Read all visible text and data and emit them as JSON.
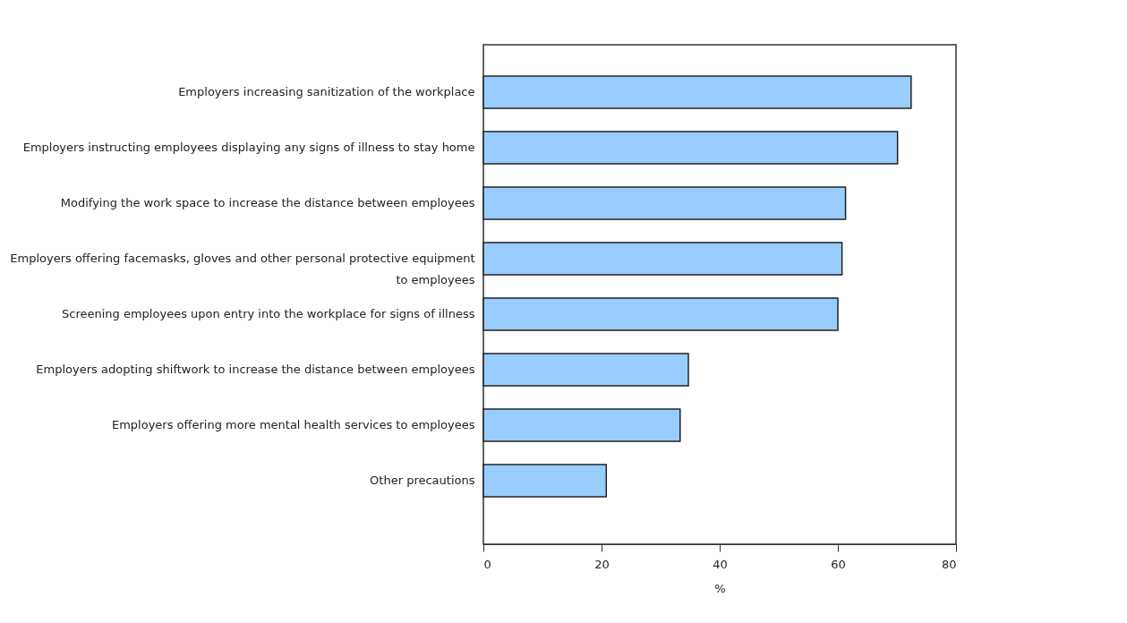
{
  "chart_data": {
    "type": "bar",
    "orientation": "horizontal",
    "xlabel": "%",
    "categories": [
      "Employers increasing sanitization of the workplace",
      "Employers instructing employees displaying any signs of illness to stay home",
      "Modifying the work space to increase the distance between employees",
      "Employers offering facemasks, gloves and other personal protective equipment to employees",
      "Screening employees upon entry into the workplace for signs of illness",
      "Employers adopting shiftwork to increase the distance between employees",
      "Employers offering more mental health services to employees",
      "Other precautions"
    ],
    "values": [
      72.4,
      70.1,
      61.3,
      60.7,
      60.0,
      34.7,
      33.3,
      20.8
    ],
    "color": "#99ccff",
    "xlim": [
      0,
      80
    ],
    "xticks": [
      0,
      20,
      40,
      60,
      80
    ]
  }
}
